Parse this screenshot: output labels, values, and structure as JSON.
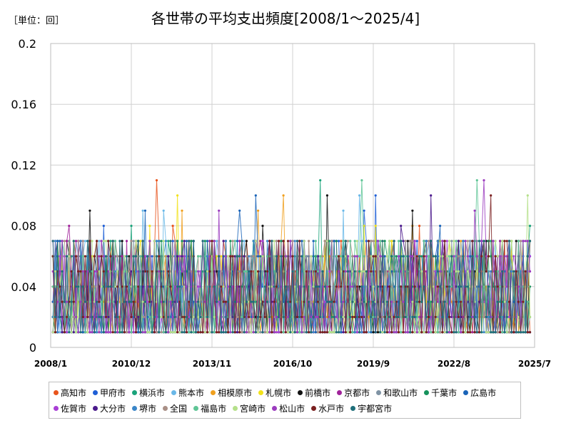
{
  "chart_data": {
    "type": "line",
    "title": "各世帯の平均支出頻度[2008/1～2025/4]",
    "unit_label": "［単位：回］",
    "ylim": [
      0,
      0.2
    ],
    "y_ticks": [
      "0",
      "0.04",
      "0.08",
      "0.12",
      "0.16",
      "0.2"
    ],
    "y_tick_values": [
      0,
      0.04,
      0.08,
      0.12,
      0.16,
      0.2
    ],
    "x_ticks": [
      "2008/1",
      "2010/12",
      "2013/11",
      "2016/10",
      "2019/9",
      "2022/8",
      "2025/7"
    ],
    "x_start": "2008/1",
    "x_end": "2025/4",
    "grid": true,
    "legend_position": "bottom",
    "series": [
      {
        "name": "高知市",
        "color": "#e8541c"
      },
      {
        "name": "甲府市",
        "color": "#1f5fd6"
      },
      {
        "name": "横浜市",
        "color": "#1aa37a"
      },
      {
        "name": "熊本市",
        "color": "#6ab8e8"
      },
      {
        "name": "相模原市",
        "color": "#f0a01e"
      },
      {
        "name": "札幌市",
        "color": "#f2e21a"
      },
      {
        "name": "前橋市",
        "color": "#111111"
      },
      {
        "name": "京都市",
        "color": "#a0229a"
      },
      {
        "name": "和歌山市",
        "color": "#7f93a4"
      },
      {
        "name": "千葉市",
        "color": "#16925c"
      },
      {
        "name": "広島市",
        "color": "#1a64b8"
      },
      {
        "name": "佐賀市",
        "color": "#a93fd6"
      },
      {
        "name": "大分市",
        "color": "#4b1a8c"
      },
      {
        "name": "堺市",
        "color": "#3a86c8"
      },
      {
        "name": "全国",
        "color": "#a98f86"
      },
      {
        "name": "福島市",
        "color": "#5fc596"
      },
      {
        "name": "宮崎市",
        "color": "#b5e08a"
      },
      {
        "name": "松山市",
        "color": "#9b3cbf"
      },
      {
        "name": "水戸市",
        "color": "#7a2020"
      },
      {
        "name": "宇都宮市",
        "color": "#1f6f7a"
      }
    ]
  }
}
